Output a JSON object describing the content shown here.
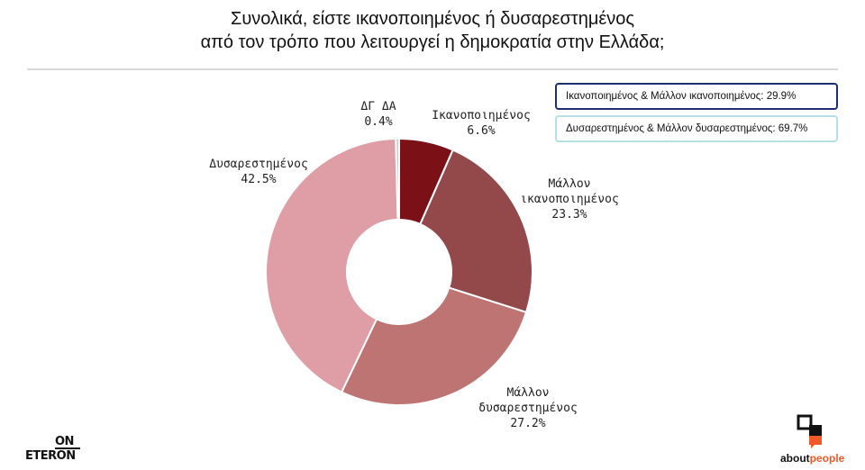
{
  "title_line1": "Συνολικά, είστε ικανοποιημένος ή δυσαρεστημένος",
  "title_line2": "από τον τρόπο που λειτουργεί η δημοκρατία στην Ελλάδα;",
  "summary": {
    "satisfied_total": "Ικανοποιημένος & Μάλλον ικανοποιημένος: 29.9%",
    "dissatisfied_total": "Δυσαρεστημένος & Μάλλον δυσαρεστημένος: 69.7%"
  },
  "logos": {
    "on_eteron_top": "ON",
    "on_eteron_bottom": "ETERON",
    "aboutpeople_a": "about",
    "aboutpeople_b": "people"
  },
  "colors": {
    "satisfied": "#7b1016",
    "rather_satisfied": "#93484a",
    "rather_dissatisfied": "#bf7474",
    "dissatisfied": "#df9ea6",
    "dk_na": "#c9c9c9",
    "accent_orange": "#f05a28"
  },
  "chart_data": {
    "type": "pie",
    "donut": true,
    "title": "Συνολικά, είστε ικανοποιημένος ή δυσαρεστημένος από τον τρόπο που λειτουργεί η δημοκρατία στην Ελλάδα;",
    "slices": [
      {
        "label": "Ικανοποιημένος",
        "value": 6.6,
        "display": "6.6%",
        "color": "#7b1016"
      },
      {
        "label": "Μάλλον ικανοποιημένος",
        "value": 23.3,
        "display": "23.3%",
        "color": "#93484a"
      },
      {
        "label": "Μάλλον δυσαρεστημένος",
        "value": 27.2,
        "display": "27.2%",
        "color": "#bf7474"
      },
      {
        "label": "Δυσαρεστημένος",
        "value": 42.5,
        "display": "42.5%",
        "color": "#df9ea6"
      },
      {
        "label": "ΔΓ ΔΑ",
        "value": 0.4,
        "display": "0.4%",
        "color": "#c9c9c9"
      }
    ]
  }
}
